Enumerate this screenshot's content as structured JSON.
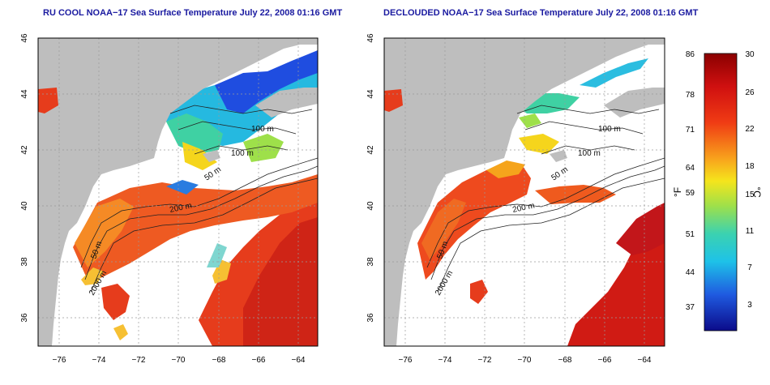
{
  "panels": [
    {
      "id": "left",
      "title": "RU COOL NOAA−17 Sea Surface Temperature July 22, 2008 01:16 GMT",
      "x_ticks": [
        "−76",
        "−74",
        "−72",
        "−70",
        "−68",
        "−66",
        "−64"
      ],
      "y_ticks": [
        "46",
        "44",
        "42",
        "40",
        "38",
        "36"
      ],
      "contour_labels": [
        "100 m",
        "100 m",
        "50 m",
        "200 m",
        "50 m",
        "2000 m"
      ]
    },
    {
      "id": "right",
      "title": "DECLOUDED NOAA−17 Sea Surface Temperature July 22, 2008 01:16 GMT",
      "x_ticks": [
        "−76",
        "−74",
        "−72",
        "−70",
        "−68",
        "−66",
        "−64"
      ],
      "y_ticks": [
        "46",
        "44",
        "42",
        "40",
        "38",
        "36"
      ],
      "contour_labels": [
        "100 m",
        "100 m",
        "50 m",
        "200 m",
        "50 m",
        "2000 m"
      ]
    }
  ],
  "colorbar": {
    "f_label": "°F",
    "c_label": "°C",
    "f_ticks": [
      "86",
      "78",
      "71",
      "64",
      "59",
      "51",
      "44",
      "37"
    ],
    "c_ticks": [
      "30",
      "26",
      "22",
      "18",
      "15",
      "11",
      "7",
      "3"
    ]
  },
  "colors": {
    "land": "#bebebe",
    "cloud": "#ffffff",
    "title": "#1a1aa0",
    "warm": "#e0301a",
    "hot": "#b50f0f",
    "mid": "#f7a21b",
    "cool": "#22c3d8",
    "cold": "#1f3fd9"
  }
}
